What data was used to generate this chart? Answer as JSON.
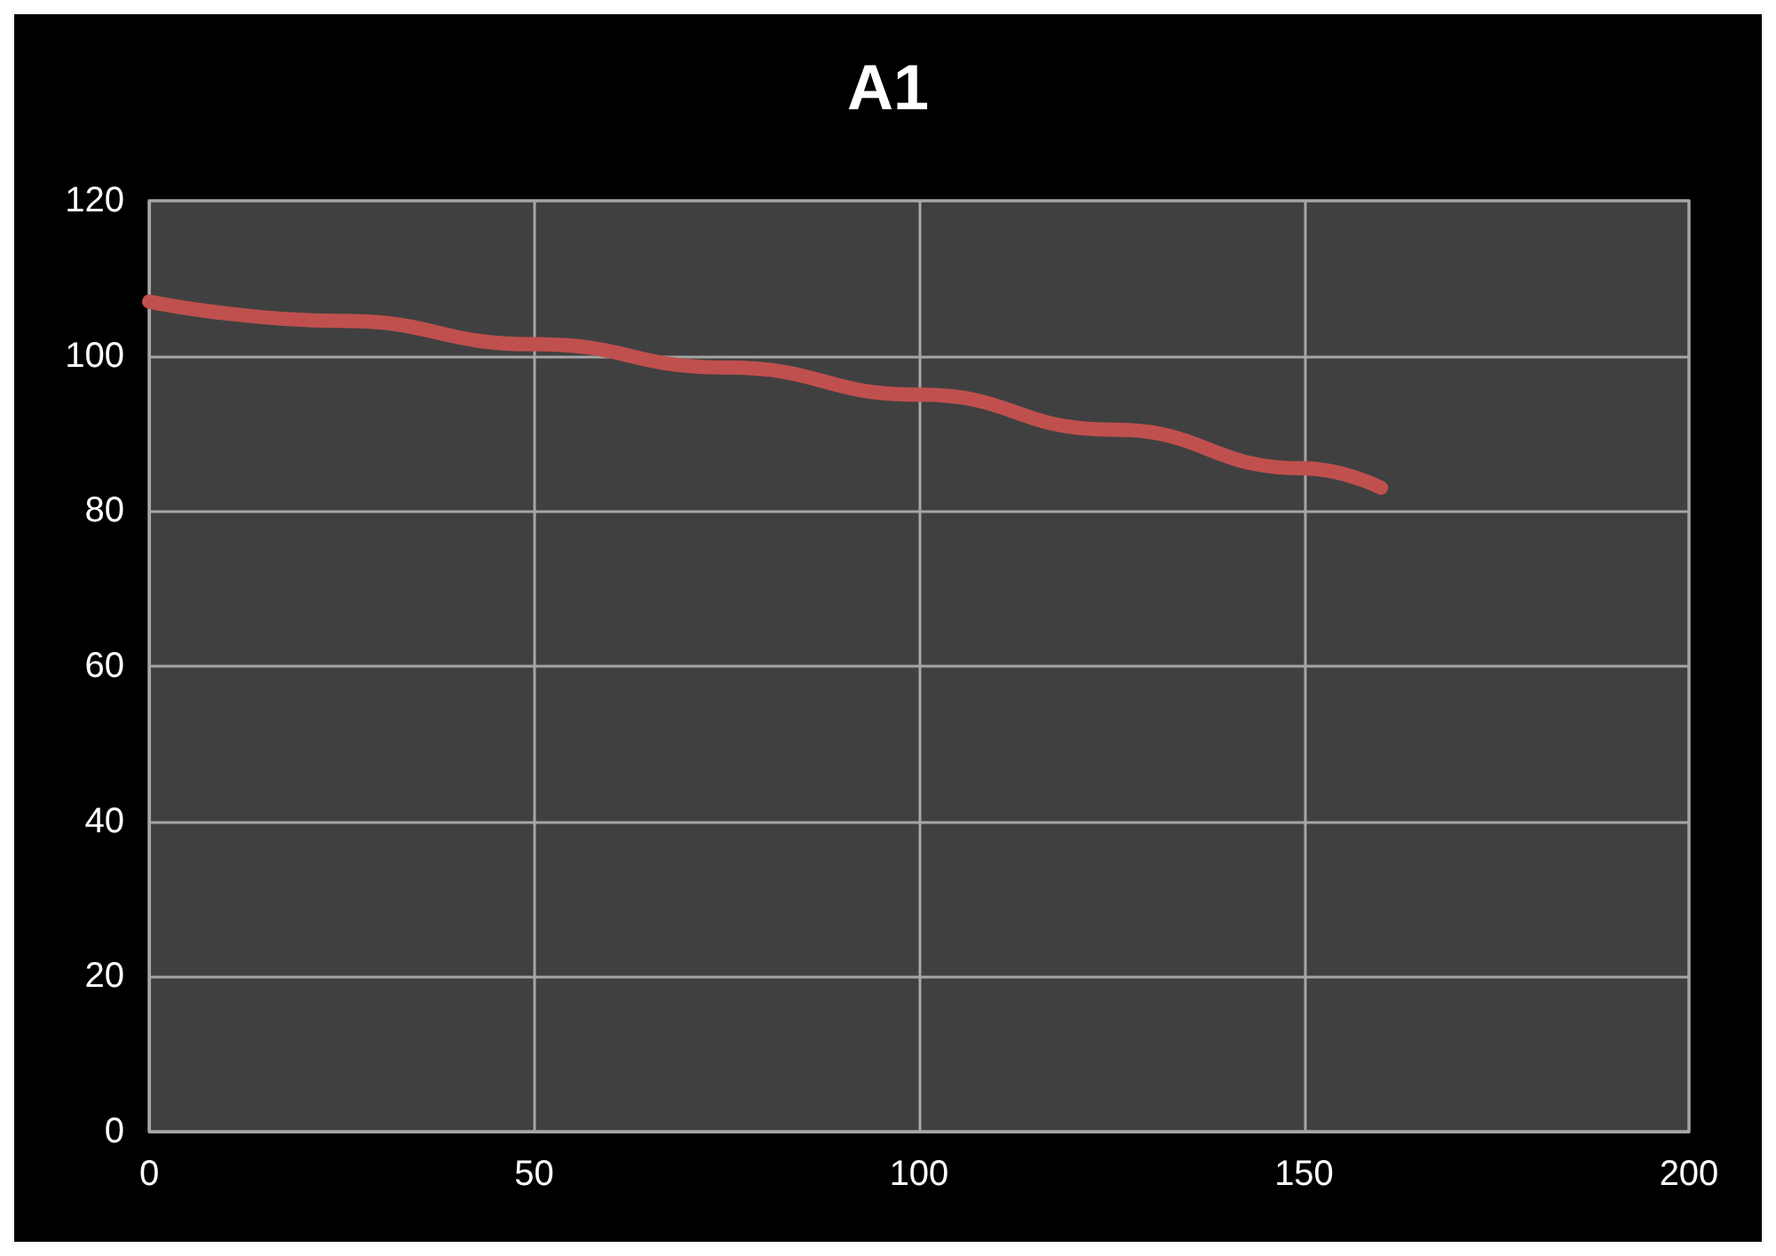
{
  "chart_data": {
    "type": "line",
    "title": "A1",
    "x": [
      0,
      25,
      50,
      75,
      100,
      125,
      150,
      160
    ],
    "series": [
      {
        "color": "#c0504d",
        "values": [
          107,
          104.5,
          101.5,
          98.5,
          95,
          90.5,
          85.5,
          83
        ]
      }
    ],
    "xlim": [
      0,
      200
    ],
    "xticks": [
      0,
      50,
      100,
      150,
      200
    ],
    "ylim": [
      0,
      120
    ],
    "yticks": [
      0,
      20,
      40,
      60,
      80,
      100,
      120
    ],
    "grid": true,
    "line_style": "solid"
  }
}
